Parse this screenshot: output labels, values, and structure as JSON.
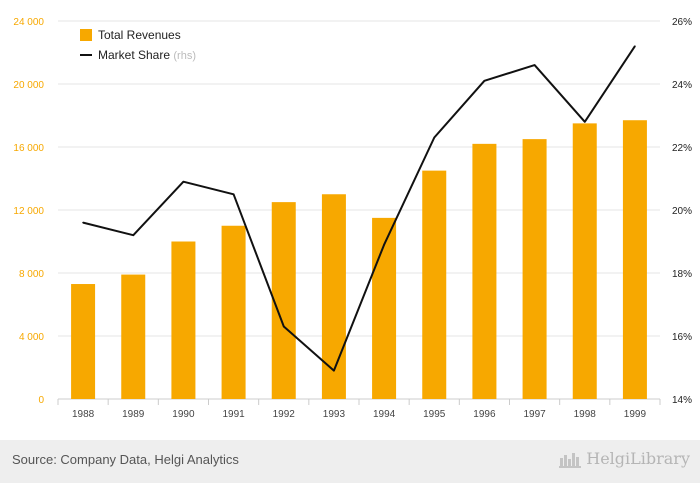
{
  "chart_data": {
    "type": "bar",
    "categories": [
      "1988",
      "1989",
      "1990",
      "1991",
      "1992",
      "1993",
      "1994",
      "1995",
      "1996",
      "1997",
      "1998",
      "1999"
    ],
    "series": [
      {
        "name": "Total Revenues",
        "type": "bar",
        "axis": "left",
        "color": "#f7a800",
        "values": [
          7300,
          7900,
          10000,
          11000,
          12500,
          13000,
          11500,
          14500,
          16200,
          16500,
          17500,
          17700
        ]
      },
      {
        "name": "Market Share",
        "name_suffix": "(rhs)",
        "type": "line",
        "axis": "right",
        "unit": "%",
        "color": "#111111",
        "values": [
          19.6,
          19.2,
          20.9,
          20.5,
          16.3,
          14.9,
          18.9,
          22.3,
          24.1,
          24.6,
          22.8,
          25.2
        ]
      }
    ],
    "y_left": {
      "lim": [
        0,
        24000
      ],
      "ticks": [
        0,
        4000,
        8000,
        12000,
        16000,
        20000,
        24000
      ],
      "tick_labels": [
        "0",
        "4 000",
        "8 000",
        "12 000",
        "16 000",
        "20 000",
        "24 000"
      ],
      "label_color": "#f7a800"
    },
    "y_right": {
      "lim": [
        14,
        26
      ],
      "ticks": [
        14,
        16,
        18,
        20,
        22,
        24,
        26
      ],
      "tick_labels": [
        "14%",
        "16%",
        "18%",
        "20%",
        "22%",
        "24%",
        "26%"
      ]
    },
    "grid": true,
    "legend_position": "top-left"
  },
  "footer": {
    "source": "Source: Company Data, Helgi Analytics",
    "brand": "HelgiLibrary"
  },
  "colors": {
    "bar": "#f7a800",
    "line": "#111111",
    "grid": "#e6e6e6",
    "footer_bg": "#eeeeee"
  }
}
